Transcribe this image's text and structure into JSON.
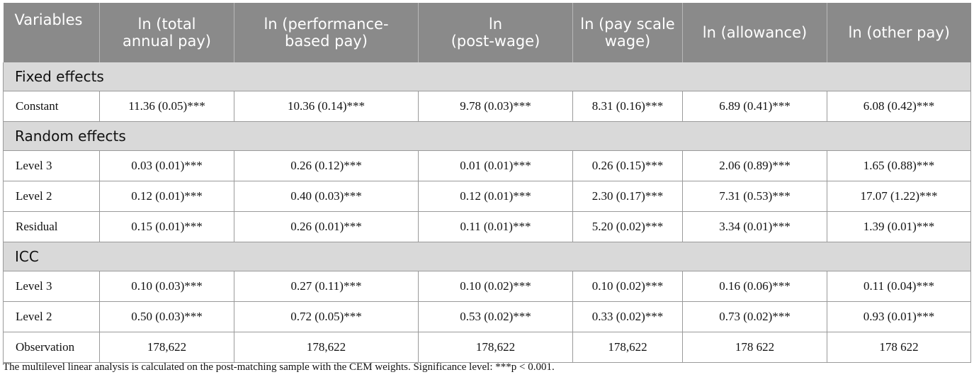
{
  "table": {
    "headers": [
      "Variables",
      "ln (total annual pay)",
      "ln (performance-based pay)",
      "ln (post-wage)",
      "ln (pay scale wage)",
      "ln (allowance)",
      "ln (other pay)"
    ],
    "header_lines": [
      [
        "Variables"
      ],
      [
        "ln (total",
        "annual pay)"
      ],
      [
        "ln (performance-",
        "based pay)"
      ],
      [
        "ln",
        "(post-wage)"
      ],
      [
        "ln (pay scale",
        "wage)"
      ],
      [
        "ln (allowance)"
      ],
      [
        "ln (other pay)"
      ]
    ],
    "sections": [
      {
        "title": "Fixed effects",
        "rows": [
          {
            "label": "Constant",
            "cells": [
              "11.36 (0.05)***",
              "10.36 (0.14)***",
              "9.78 (0.03)***",
              "8.31 (0.16)***",
              "6.89 (0.41)***",
              "6.08 (0.42)***"
            ]
          }
        ]
      },
      {
        "title": "Random effects",
        "rows": [
          {
            "label": "Level 3",
            "cells": [
              "0.03 (0.01)***",
              "0.26 (0.12)***",
              "0.01 (0.01)***",
              "0.26 (0.15)***",
              "2.06 (0.89)***",
              "1.65 (0.88)***"
            ]
          },
          {
            "label": "Level 2",
            "cells": [
              "0.12 (0.01)***",
              "0.40 (0.03)***",
              "0.12 (0.01)***",
              "2.30 (0.17)***",
              "7.31 (0.53)***",
              "17.07 (1.22)***"
            ]
          },
          {
            "label": "Residual",
            "cells": [
              "0.15 (0.01)***",
              "0.26 (0.01)***",
              "0.11 (0.01)***",
              "5.20 (0.02)***",
              "3.34 (0.01)***",
              "1.39 (0.01)***"
            ]
          }
        ]
      },
      {
        "title": "ICC",
        "rows": [
          {
            "label": "Level 3",
            "cells": [
              "0.10 (0.03)***",
              "0.27 (0.11)***",
              "0.10 (0.02)***",
              "0.10 (0.02)***",
              "0.16 (0.06)***",
              "0.11 (0.04)***"
            ]
          },
          {
            "label": "Level 2",
            "cells": [
              "0.50 (0.03)***",
              "0.72 (0.05)***",
              "0.53 (0.02)***",
              "0.33 (0.02)***",
              "0.73 (0.02)***",
              "0.93 (0.01)***"
            ]
          },
          {
            "label": "Observation",
            "cells": [
              "178,622",
              "178,622",
              "178,622",
              "178,622",
              "178 622",
              "178 622"
            ]
          }
        ]
      }
    ]
  },
  "note": "The multilevel linear analysis is calculated on the post-matching sample with the CEM weights. Significance level: ***p < 0.001.",
  "colors": {
    "header_bg": "#8a8a8a",
    "header_text": "#ffffff",
    "section_bg": "#d9d9d9",
    "border": "#9a9a9a"
  }
}
